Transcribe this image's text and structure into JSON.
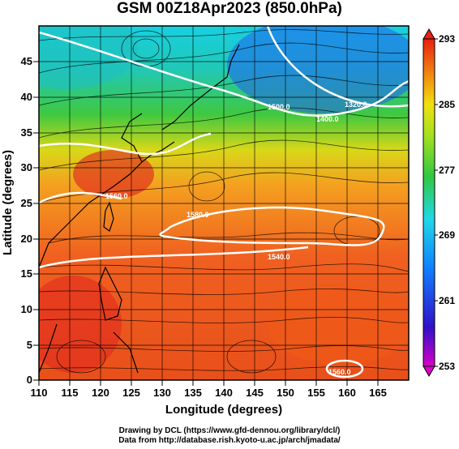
{
  "title": "GSM 00Z18Apr2023 (850.0hPa)",
  "x_axis": {
    "label": "Longitude (degrees)",
    "ticks": [
      "110",
      "115",
      "120",
      "125",
      "130",
      "135",
      "140",
      "145",
      "150",
      "155",
      "160",
      "165"
    ]
  },
  "y_axis": {
    "label": "Latitude (degrees)",
    "ticks": [
      "0",
      "5",
      "10",
      "15",
      "20",
      "25",
      "30",
      "35",
      "40",
      "45"
    ]
  },
  "colorbar": {
    "ticks": [
      "253",
      "261",
      "269",
      "277",
      "285",
      "293"
    ],
    "min": 253,
    "max": 293
  },
  "contour_labels": [
    "1560.0",
    "1580.0",
    "1500.0",
    "1400.0",
    "1320.0",
    "1540.0",
    "1560.0"
  ],
  "credits": {
    "line1": "Drawing by DCL (https://www.gfd-dennou.org/library/dcl/)",
    "line2": "Data from http://database.rish.kyoto-u.ac.jp/arch/jmadata/"
  },
  "colors": {
    "warm": "#e8401a",
    "mid": "#f2a020",
    "green": "#35c23a",
    "cyan": "#18c8d8"
  }
}
